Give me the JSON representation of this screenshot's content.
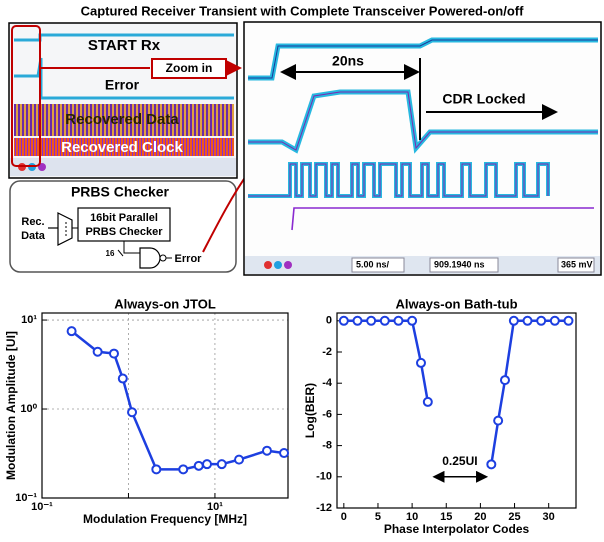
{
  "figure": {
    "title": "Captured Receiver Transient with Complete Transceiver Powered-on/off",
    "left_scope": {
      "start": "START Rx",
      "error": "Error",
      "data": "Recovered Data",
      "clock": "Recovered Clock",
      "zoom": "Zoom in"
    },
    "prbs": {
      "title": "PRBS Checker",
      "input": [
        "Rec.",
        "Data"
      ],
      "block": [
        "16bit Parallel",
        "PRBS Checker"
      ],
      "width": "16",
      "output": "Error"
    },
    "right_scope": {
      "span": "20ns",
      "locked": "CDR Locked",
      "toolbar": [
        "5.00 ns/",
        "909.1940 ns",
        "365 mV"
      ]
    }
  },
  "chart_data": [
    {
      "type": "line",
      "title": "Always-on JTOL",
      "xlabel": "Modulation Frequency [MHz]",
      "ylabel": "Modulation Amplitude [UI]",
      "xscale": "log",
      "yscale": "log",
      "grid": true,
      "xlim": [
        0.1,
        70
      ],
      "ylim": [
        0.1,
        12
      ],
      "xticks": [
        {
          "value": 0.1,
          "label": "10⁻¹"
        },
        {
          "value": 1,
          "label": null
        },
        {
          "value": 10,
          "label": "10¹"
        }
      ],
      "yticks": [
        {
          "value": 0.1,
          "label": "10⁻¹"
        },
        {
          "value": 1,
          "label": "10⁰"
        },
        {
          "value": 10,
          "label": "10¹"
        }
      ],
      "series": [
        {
          "color": "#1d3fe0",
          "x": [
            0.22,
            0.44,
            0.68,
            0.86,
            1.1,
            2.1,
            4.3,
            6.5,
            8.1,
            12,
            19,
            40,
            63
          ],
          "values": [
            7.5,
            4.4,
            4.2,
            2.2,
            0.92,
            0.21,
            0.21,
            0.23,
            0.24,
            0.24,
            0.27,
            0.34,
            0.32
          ]
        }
      ]
    },
    {
      "type": "line",
      "title": "Always-on Bath-tub",
      "xlabel": "Phase Interpolator Codes",
      "ylabel": "Log(BER)",
      "xscale": "linear",
      "yscale": "linear",
      "grid": false,
      "xlim": [
        -1,
        34
      ],
      "ylim": [
        -12,
        0.5
      ],
      "xticks": [
        0,
        5,
        10,
        15,
        20,
        25,
        30
      ],
      "yticks": [
        -12,
        -10,
        -8,
        -6,
        -4,
        -2,
        0
      ],
      "annotation": "0.25UI",
      "series": [
        {
          "color": "#1d3fe0",
          "x": [
            0,
            2,
            4,
            6,
            8,
            10,
            11.3,
            12.3
          ],
          "values": [
            0,
            0,
            0,
            0,
            0,
            0,
            -2.7,
            -5.2
          ]
        },
        {
          "color": "#1d3fe0",
          "x": [
            21.6,
            22.6,
            23.6,
            24.9,
            26.9,
            28.9,
            30.9,
            32.9
          ],
          "values": [
            -9.2,
            -6.4,
            -3.8,
            0,
            0,
            0,
            0,
            0
          ]
        }
      ]
    }
  ]
}
